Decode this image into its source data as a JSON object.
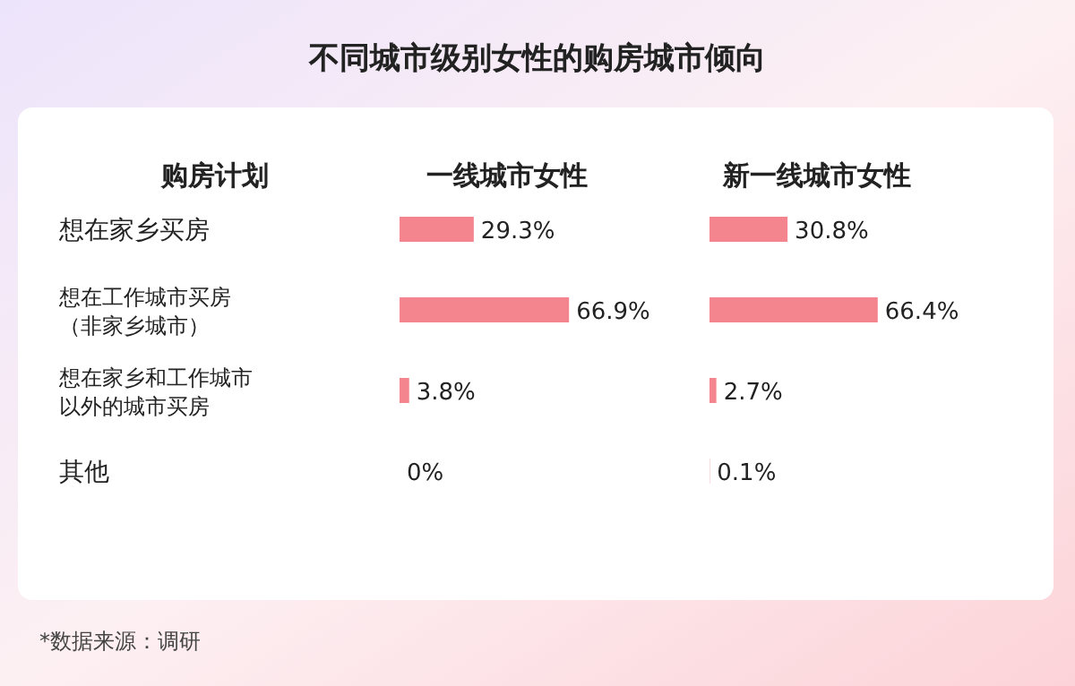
{
  "chart_data": [
    {
      "type": "bar",
      "orientation": "horizontal",
      "title": "不同城市级别女性的购房城市倾向",
      "subtitle": "一线城市女性",
      "ylabel": "购房计划",
      "categories": [
        "想在家乡买房",
        "想在工作城市买房（非家乡城市）",
        "想在家乡和工作城市以外的城市买房",
        "其他"
      ],
      "values": [
        29.3,
        66.9,
        3.8,
        0
      ],
      "value_labels": [
        "29.3%",
        "66.9%",
        "3.8%",
        "0%"
      ],
      "color": "#f4858e",
      "tick_labels": "y"
    },
    {
      "type": "bar",
      "orientation": "horizontal",
      "subtitle": "新一线城市女性",
      "categories": [
        "想在家乡买房",
        "想在工作城市买房（非家乡城市）",
        "想在家乡和工作城市以外的城市买房",
        "其他"
      ],
      "values": [
        30.8,
        66.4,
        2.7,
        0.1
      ],
      "value_labels": [
        "30.8%",
        "66.4%",
        "2.7%",
        "0.1%"
      ],
      "color": "#f4858e",
      "tick_labels": false,
      "annotations": [
        "*数据来源：调研"
      ]
    }
  ]
}
